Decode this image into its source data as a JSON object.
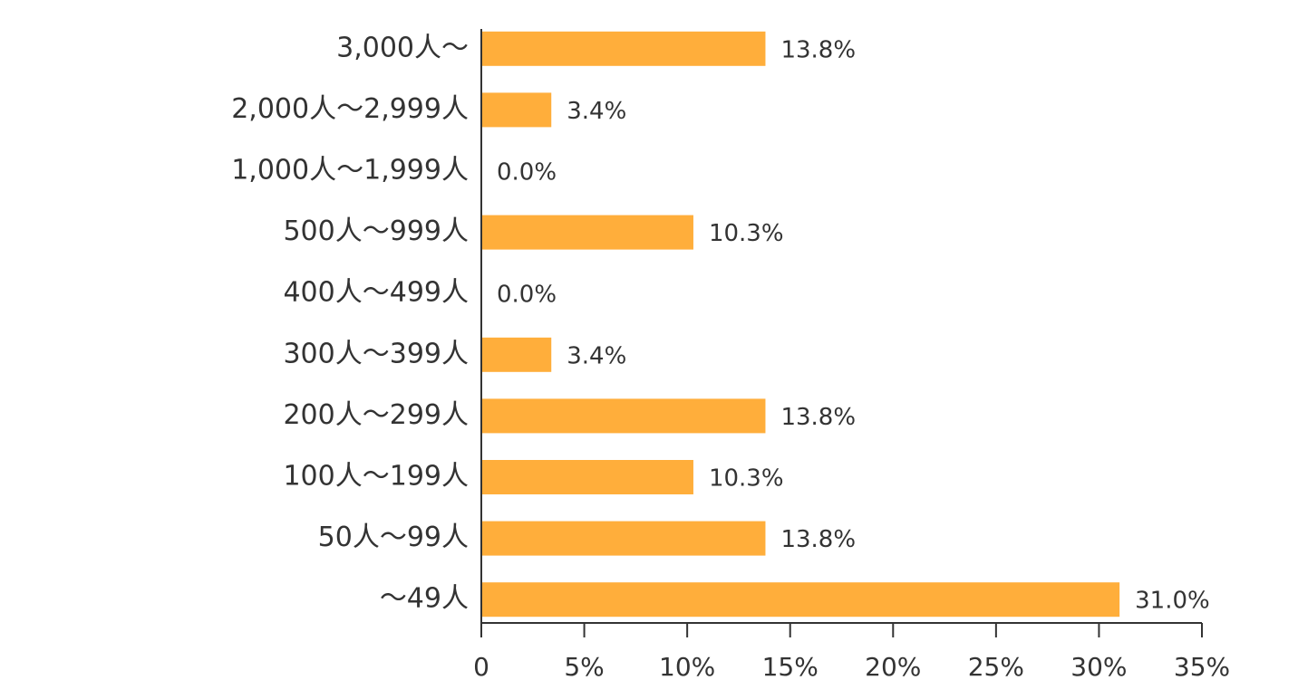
{
  "chart_data": {
    "type": "bar",
    "orientation": "horizontal",
    "title": "",
    "xlabel": "",
    "ylabel": "",
    "categories": [
      "3,000人～",
      "2,000人～2,999人",
      "1,000人～1,999人",
      "500人～999人",
      "400人～499人",
      "300人～399人",
      "200人～299人",
      "100人～199人",
      "50人～99人",
      "～49人"
    ],
    "values": [
      13.8,
      3.4,
      0.0,
      10.3,
      0.0,
      3.4,
      13.8,
      10.3,
      13.8,
      31.0
    ],
    "value_labels": [
      "13.8%",
      "3.4%",
      "0.0%",
      "10.3%",
      "0.0%",
      "3.4%",
      "13.8%",
      "10.3%",
      "13.8%",
      "31.0%"
    ],
    "xlim": [
      0,
      35
    ],
    "x_ticks": [
      0,
      5,
      10,
      15,
      20,
      25,
      30,
      35
    ],
    "x_tick_labels": [
      "0",
      "5%",
      "10%",
      "15%",
      "20%",
      "25%",
      "30%",
      "35%"
    ],
    "grid": false,
    "legend": "none",
    "bar_color": "#FFAE3B",
    "axis_color": "#333333"
  }
}
